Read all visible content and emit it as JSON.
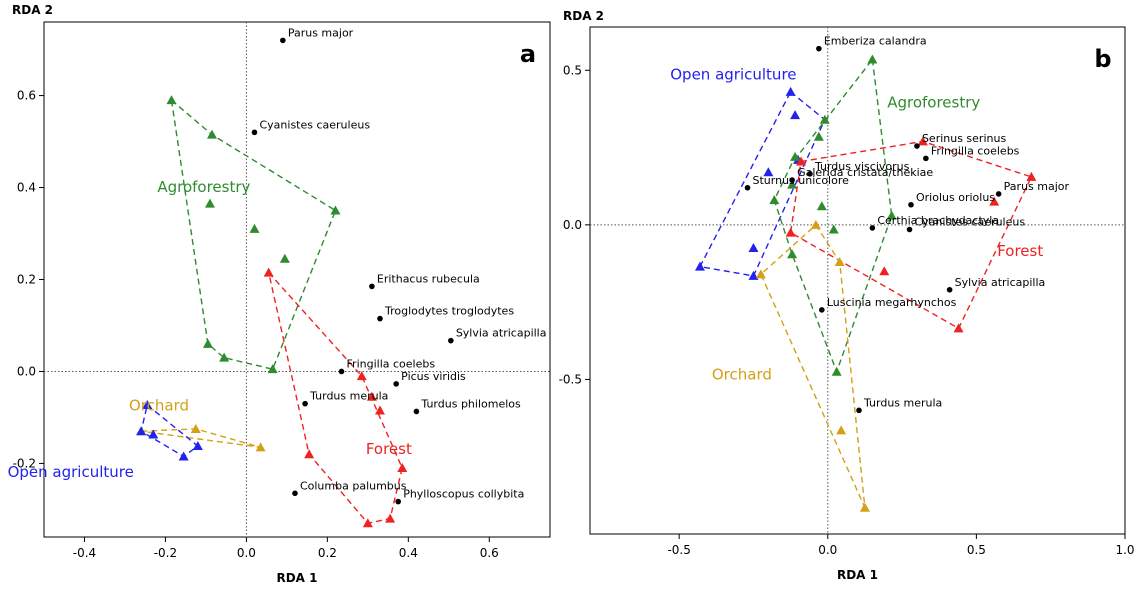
{
  "chart_data": [
    {
      "type": "scatter",
      "panel_letter": "a",
      "xlabel": "RDA 1",
      "ylabel": "RDA 2",
      "xlim": [
        -0.5,
        0.75
      ],
      "ylim": [
        -0.36,
        0.76
      ],
      "xticks": [
        -0.4,
        -0.2,
        0.0,
        0.2,
        0.4,
        0.6
      ],
      "xtick_labels": [
        "-0.4",
        "-0.2",
        "0.0",
        "0.2",
        "0.4",
        "0.6"
      ],
      "yticks": [
        -0.2,
        0.0,
        0.2,
        0.4,
        0.6
      ],
      "ytick_labels": [
        "-0.2",
        "0.0",
        "0.2",
        "0.4",
        "0.6"
      ],
      "zero_lines": true,
      "species": [
        {
          "label": "Parus major",
          "x": 0.09,
          "y": 0.72
        },
        {
          "label": "Cyanistes caeruleus",
          "x": 0.02,
          "y": 0.52
        },
        {
          "label": "Erithacus rubecula",
          "x": 0.31,
          "y": 0.185
        },
        {
          "label": "Troglodytes troglodytes",
          "x": 0.33,
          "y": 0.115
        },
        {
          "label": "Sylvia atricapilla",
          "x": 0.505,
          "y": 0.067
        },
        {
          "label": "Fringilla coelebs",
          "x": 0.235,
          "y": 0.0
        },
        {
          "label": "Picus viridis",
          "x": 0.37,
          "y": -0.027
        },
        {
          "label": "Turdus merula",
          "x": 0.145,
          "y": -0.07
        },
        {
          "label": "Turdus philomelos",
          "x": 0.42,
          "y": -0.087
        },
        {
          "label": "Columba palumbus",
          "x": 0.12,
          "y": -0.265
        },
        {
          "label": "Phylloscopus collybita",
          "x": 0.375,
          "y": -0.283
        }
      ],
      "groups": [
        {
          "name": "Agroforestry",
          "color": "#2e8b2e",
          "sites": [
            [
              -0.185,
              0.59
            ],
            [
              -0.085,
              0.515
            ],
            [
              -0.09,
              0.365
            ],
            [
              0.02,
              0.31
            ],
            [
              0.095,
              0.245
            ],
            [
              0.22,
              0.35
            ],
            [
              -0.095,
              0.06
            ],
            [
              -0.055,
              0.03
            ],
            [
              0.065,
              0.005
            ]
          ],
          "hull": [
            [
              -0.185,
              0.59
            ],
            [
              -0.085,
              0.515
            ],
            [
              0.22,
              0.35
            ],
            [
              0.065,
              0.005
            ],
            [
              -0.055,
              0.03
            ],
            [
              -0.095,
              0.06
            ]
          ]
        },
        {
          "name": "Forest",
          "color": "#ee2222",
          "sites": [
            [
              0.055,
              0.215
            ],
            [
              0.285,
              -0.01
            ],
            [
              0.31,
              -0.055
            ],
            [
              0.33,
              -0.085
            ],
            [
              0.155,
              -0.18
            ],
            [
              0.385,
              -0.21
            ],
            [
              0.3,
              -0.33
            ],
            [
              0.355,
              -0.32
            ]
          ],
          "hull": [
            [
              0.055,
              0.215
            ],
            [
              0.285,
              -0.01
            ],
            [
              0.385,
              -0.21
            ],
            [
              0.355,
              -0.32
            ],
            [
              0.3,
              -0.33
            ],
            [
              0.155,
              -0.18
            ]
          ]
        },
        {
          "name": "Orchard",
          "color": "#d4a017",
          "sites": [
            [
              -0.26,
              -0.13
            ],
            [
              -0.125,
              -0.125
            ],
            [
              0.035,
              -0.165
            ]
          ],
          "hull": [
            [
              -0.26,
              -0.13
            ],
            [
              -0.125,
              -0.125
            ],
            [
              0.035,
              -0.165
            ]
          ]
        },
        {
          "name": "Open agriculture",
          "color": "#2222ee",
          "sites": [
            [
              -0.245,
              -0.073
            ],
            [
              -0.23,
              -0.137
            ],
            [
              -0.12,
              -0.162
            ],
            [
              -0.155,
              -0.185
            ],
            [
              -0.26,
              -0.13
            ]
          ],
          "hull": [
            [
              -0.245,
              -0.073
            ],
            [
              -0.12,
              -0.162
            ],
            [
              -0.155,
              -0.185
            ],
            [
              -0.26,
              -0.13
            ]
          ]
        }
      ],
      "group_labels": [
        {
          "name": "Agroforestry",
          "color": "#2e8b2e",
          "x": -0.22,
          "y": 0.39
        },
        {
          "name": "Orchard",
          "color": "#d4a017",
          "x": -0.29,
          "y": -0.085
        },
        {
          "name": "Open agriculture",
          "color": "#2222ee",
          "x": -0.59,
          "y": -0.23
        },
        {
          "name": "Forest",
          "color": "#ee2222",
          "x": 0.295,
          "y": -0.18
        }
      ]
    },
    {
      "type": "scatter",
      "panel_letter": "b",
      "xlabel": "RDA 1",
      "ylabel": "RDA 2",
      "xlim": [
        -0.8,
        1.0
      ],
      "ylim": [
        -1.0,
        0.64
      ],
      "xticks": [
        -0.5,
        0.0,
        0.5,
        1.0
      ],
      "xtick_labels": [
        "-0.5",
        "0.0",
        "0.5",
        "1.0"
      ],
      "yticks": [
        -0.5,
        0.0,
        0.5
      ],
      "ytick_labels": [
        "-0.5",
        "0.0",
        "0.5"
      ],
      "zero_lines": true,
      "species": [
        {
          "label": "Emberiza calandra",
          "x": -0.03,
          "y": 0.57
        },
        {
          "label": "Galerida cristata/thekiae",
          "x": -0.12,
          "y": 0.145
        },
        {
          "label": "Serinus serinus",
          "x": 0.3,
          "y": 0.255
        },
        {
          "label": "Fringilla coelebs",
          "x": 0.33,
          "y": 0.215
        },
        {
          "label": "Turdus viscivorus",
          "x": -0.06,
          "y": 0.165
        },
        {
          "label": "Sturnus unicolore",
          "x": -0.27,
          "y": 0.12
        },
        {
          "label": "Parus major",
          "x": 0.575,
          "y": 0.1
        },
        {
          "label": "Oriolus oriolus",
          "x": 0.28,
          "y": 0.065
        },
        {
          "label": "Certhia brachydactyla",
          "x": 0.15,
          "y": -0.01
        },
        {
          "label": "Cyanistes caeruleus",
          "x": 0.275,
          "y": -0.015
        },
        {
          "label": "Sylvia atricapilla",
          "x": 0.41,
          "y": -0.21
        },
        {
          "label": "Luscinia megarhynchos",
          "x": -0.02,
          "y": -0.275
        },
        {
          "label": "Turdus merula",
          "x": 0.105,
          "y": -0.6
        }
      ],
      "groups": [
        {
          "name": "Open agriculture",
          "color": "#2222ee",
          "sites": [
            [
              -0.125,
              0.43
            ],
            [
              -0.11,
              0.355
            ],
            [
              -0.1,
              0.21
            ],
            [
              -0.2,
              0.17
            ],
            [
              -0.25,
              -0.075
            ],
            [
              -0.25,
              -0.165
            ],
            [
              -0.43,
              -0.135
            ]
          ],
          "hull": [
            [
              -0.125,
              0.43
            ],
            [
              -0.01,
              0.34
            ],
            [
              -0.25,
              -0.165
            ],
            [
              -0.43,
              -0.135
            ]
          ]
        },
        {
          "name": "Agroforestry",
          "color": "#2e8b2e",
          "sites": [
            [
              0.15,
              0.535
            ],
            [
              -0.01,
              0.34
            ],
            [
              -0.03,
              0.285
            ],
            [
              -0.11,
              0.22
            ],
            [
              -0.12,
              0.13
            ],
            [
              -0.18,
              0.08
            ],
            [
              -0.02,
              0.06
            ],
            [
              0.02,
              -0.015
            ],
            [
              -0.12,
              -0.095
            ],
            [
              0.03,
              -0.475
            ],
            [
              0.215,
              0.03
            ]
          ],
          "hull": [
            [
              0.15,
              0.535
            ],
            [
              0.215,
              0.03
            ],
            [
              0.03,
              -0.475
            ],
            [
              -0.12,
              -0.095
            ],
            [
              -0.18,
              0.08
            ],
            [
              -0.12,
              0.2
            ]
          ]
        },
        {
          "name": "Forest",
          "color": "#ee2222",
          "sites": [
            [
              0.32,
              0.27
            ],
            [
              0.685,
              0.155
            ],
            [
              0.56,
              0.075
            ],
            [
              -0.09,
              0.205
            ],
            [
              -0.125,
              -0.025
            ],
            [
              0.19,
              -0.15
            ],
            [
              0.44,
              -0.335
            ]
          ],
          "hull": [
            [
              -0.09,
              0.205
            ],
            [
              0.32,
              0.27
            ],
            [
              0.685,
              0.155
            ],
            [
              0.44,
              -0.335
            ],
            [
              -0.125,
              -0.025
            ]
          ]
        },
        {
          "name": "Orchard",
          "color": "#d4a017",
          "sites": [
            [
              -0.04,
              0.0
            ],
            [
              -0.225,
              -0.16
            ],
            [
              0.04,
              -0.12
            ],
            [
              0.045,
              -0.665
            ],
            [
              0.125,
              -0.915
            ]
          ],
          "hull": [
            [
              -0.04,
              0.0
            ],
            [
              0.04,
              -0.12
            ],
            [
              0.125,
              -0.915
            ],
            [
              -0.225,
              -0.16
            ]
          ]
        }
      ],
      "group_labels": [
        {
          "name": "Open agriculture",
          "color": "#2222ee",
          "x": -0.53,
          "y": 0.47
        },
        {
          "name": "Agroforestry",
          "color": "#2e8b2e",
          "x": 0.2,
          "y": 0.38
        },
        {
          "name": "Forest",
          "color": "#ee2222",
          "x": 0.57,
          "y": -0.1
        },
        {
          "name": "Orchard",
          "color": "#d4a017",
          "x": -0.39,
          "y": -0.5
        }
      ]
    }
  ]
}
